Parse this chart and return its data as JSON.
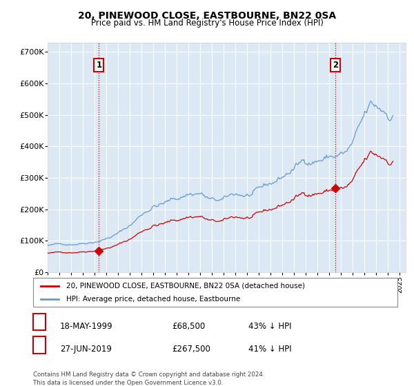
{
  "title": "20, PINEWOOD CLOSE, EASTBOURNE, BN22 0SA",
  "subtitle": "Price paid vs. HM Land Registry's House Price Index (HPI)",
  "ylabel_ticks": [
    "£0",
    "£100K",
    "£200K",
    "£300K",
    "£400K",
    "£500K",
    "£600K",
    "£700K"
  ],
  "ytick_values": [
    0,
    100000,
    200000,
    300000,
    400000,
    500000,
    600000,
    700000
  ],
  "ylim": [
    0,
    730000
  ],
  "plot_bg_color": "#dce9f5",
  "hpi_color": "#6699cc",
  "price_color": "#cc0000",
  "vline_color": "#cc0000",
  "legend_entry1": "20, PINEWOOD CLOSE, EASTBOURNE, BN22 0SA (detached house)",
  "legend_entry2": "HPI: Average price, detached house, Eastbourne",
  "footnote": "Contains HM Land Registry data © Crown copyright and database right 2024.\nThis data is licensed under the Open Government Licence v3.0.",
  "sale1_x": 1999.37,
  "sale1_y": 68500,
  "sale2_x": 2019.5,
  "sale2_y": 267500,
  "vline1_x": 1999.37,
  "vline2_x": 2019.5,
  "xlim_start": 1995,
  "xlim_end": 2025.5
}
